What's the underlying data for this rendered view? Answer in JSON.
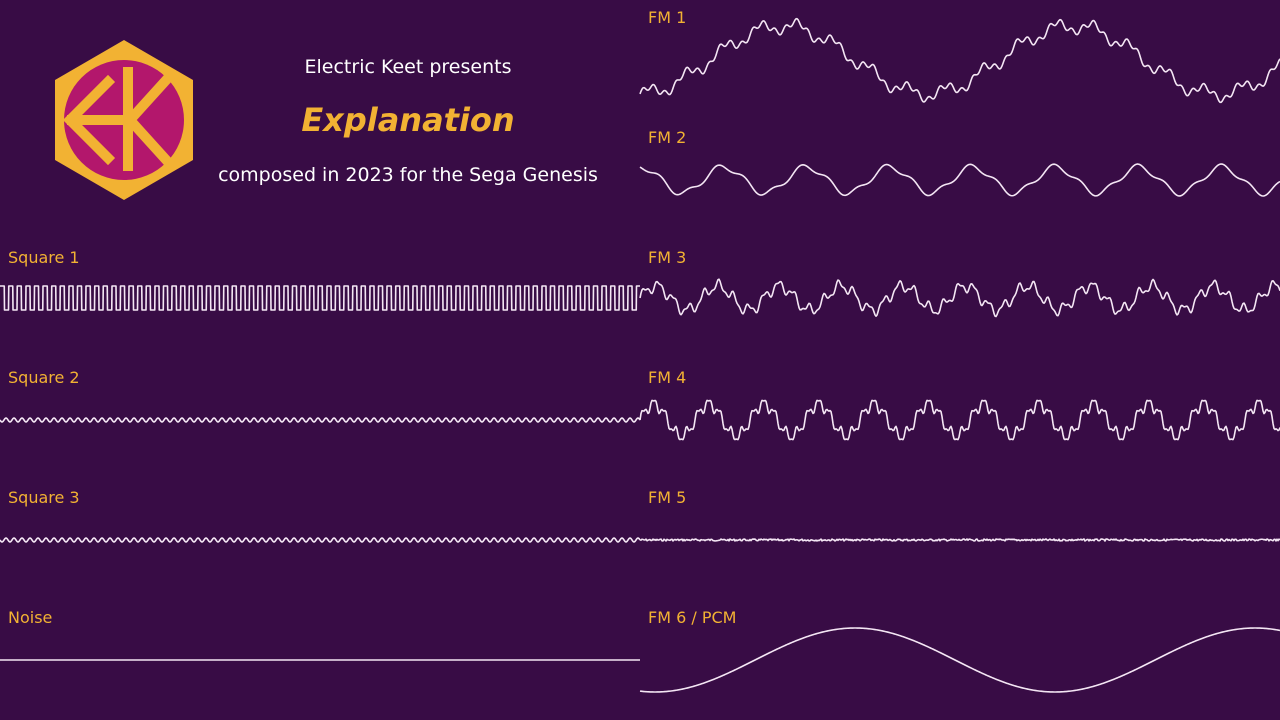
{
  "header": {
    "presenter": "Electric Keet presents",
    "title": "Explanation",
    "subtitle": "composed in 2023 for the Sega Genesis"
  },
  "channels": [
    {
      "label": "Square 1"
    },
    {
      "label": "Square 2"
    },
    {
      "label": "Square 3"
    },
    {
      "label": "Noise"
    },
    {
      "label": "FM 1"
    },
    {
      "label": "FM 2"
    },
    {
      "label": "FM 3"
    },
    {
      "label": "FM 4"
    },
    {
      "label": "FM 5"
    },
    {
      "label": "FM 6 / PCM"
    }
  ]
}
